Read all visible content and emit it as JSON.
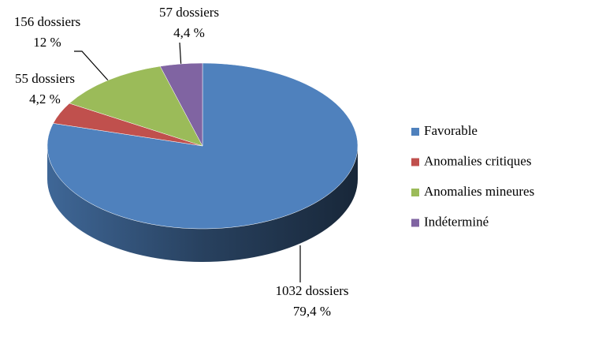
{
  "chart_data": {
    "type": "pie",
    "categories": [
      "Favorable",
      "Anomalies critiques",
      "Anomalies mineures",
      "Indéterminé"
    ],
    "values": [
      79.4,
      4.2,
      12,
      4.4
    ],
    "value_labels": [
      "79,4 %",
      "4,2 %",
      "12 %",
      "4,4 %"
    ],
    "counts": [
      1032,
      55,
      156,
      57
    ],
    "count_labels": [
      "1032 dossiers",
      "55 dossiers",
      "156 dossiers",
      "57 dossiers"
    ],
    "colors": [
      "#4f81bd",
      "#c0504d",
      "#9bbb59",
      "#8064a2"
    ],
    "legend": "right"
  }
}
